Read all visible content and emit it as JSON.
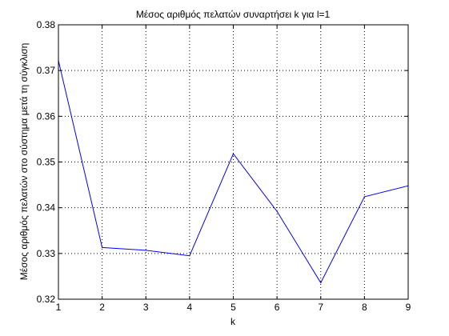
{
  "chart_data": {
    "type": "line",
    "title": "Μέσος αριθμός πελατών συναρτήσει k για l=1",
    "xlabel": "k",
    "ylabel": "Μέσος αριθμός πελατών στο σύστημα μετά τη σύγκλιση",
    "x": [
      1,
      2,
      3,
      4,
      5,
      6,
      7,
      8,
      9
    ],
    "series": [
      {
        "values": [
          0.3722,
          0.3313,
          0.3307,
          0.3295,
          0.3518,
          0.3392,
          0.3236,
          0.3424,
          0.3448
        ],
        "color": "#0000ff"
      }
    ],
    "xlim": [
      1,
      9
    ],
    "ylim": [
      0.32,
      0.38
    ],
    "xticks": [
      1,
      2,
      3,
      4,
      5,
      6,
      7,
      8,
      9
    ],
    "xtick_labels": [
      "1",
      "2",
      "3",
      "4",
      "5",
      "6",
      "7",
      "8",
      "9"
    ],
    "yticks": [
      0.32,
      0.33,
      0.34,
      0.35,
      0.36,
      0.37,
      0.38
    ],
    "ytick_labels": [
      "0.32",
      "0.33",
      "0.34",
      "0.35",
      "0.36",
      "0.37",
      "0.38"
    ],
    "grid": true,
    "grid_style": "dotted",
    "axes_color": "#000000",
    "background_color": "#ffffff"
  }
}
